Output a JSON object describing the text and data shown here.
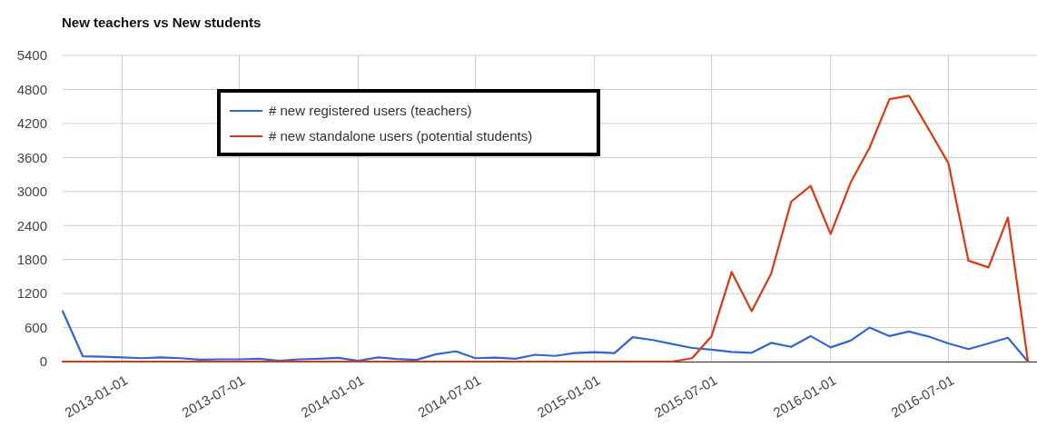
{
  "chart_data": {
    "type": "line",
    "title": "New teachers vs New students",
    "x": [
      "2012-10",
      "2012-11",
      "2012-12",
      "2013-01",
      "2013-02",
      "2013-03",
      "2013-04",
      "2013-05",
      "2013-06",
      "2013-07",
      "2013-08",
      "2013-09",
      "2013-10",
      "2013-11",
      "2013-12",
      "2014-01",
      "2014-02",
      "2014-03",
      "2014-04",
      "2014-05",
      "2014-06",
      "2014-07",
      "2014-08",
      "2014-09",
      "2014-10",
      "2014-11",
      "2014-12",
      "2015-01",
      "2015-02",
      "2015-03",
      "2015-04",
      "2015-05",
      "2015-06",
      "2015-07",
      "2015-08",
      "2015-09",
      "2015-10",
      "2015-11",
      "2015-12",
      "2016-01",
      "2016-02",
      "2016-03",
      "2016-04",
      "2016-05",
      "2016-06",
      "2016-07",
      "2016-08",
      "2016-09",
      "2016-10",
      "2016-11"
    ],
    "series": [
      {
        "name": "# new registered users (teachers)",
        "color": "#3366cc",
        "values": [
          890,
          95,
          85,
          75,
          60,
          75,
          60,
          35,
          40,
          40,
          50,
          15,
          40,
          50,
          65,
          15,
          75,
          45,
          30,
          130,
          180,
          60,
          70,
          50,
          120,
          100,
          150,
          165,
          150,
          430,
          380,
          310,
          240,
          210,
          170,
          155,
          330,
          260,
          450,
          250,
          370,
          600,
          450,
          530,
          440,
          320,
          220,
          320,
          420,
          0
        ]
      },
      {
        "name": "# new standalone users (potential students)",
        "color": "#dc3912",
        "values": [
          0,
          0,
          0,
          0,
          0,
          0,
          0,
          0,
          0,
          0,
          0,
          0,
          0,
          0,
          0,
          0,
          0,
          0,
          0,
          0,
          0,
          0,
          0,
          0,
          0,
          0,
          0,
          0,
          0,
          0,
          0,
          0,
          60,
          450,
          1580,
          890,
          1550,
          2820,
          3100,
          2250,
          3160,
          3770,
          4630,
          4690,
          4090,
          3500,
          1780,
          1660,
          2540,
          0
        ]
      }
    ],
    "xlim": [
      "2012-10-01",
      "2016-11-15"
    ],
    "xticks": [
      {
        "value": "2013-01-01",
        "label": "2013-01-01"
      },
      {
        "value": "2013-07-01",
        "label": "2013-07-01"
      },
      {
        "value": "2014-01-01",
        "label": "2014-01-01"
      },
      {
        "value": "2014-07-01",
        "label": "2014-07-01"
      },
      {
        "value": "2015-01-01",
        "label": "2015-01-01"
      },
      {
        "value": "2015-07-01",
        "label": "2015-07-01"
      },
      {
        "value": "2016-01-01",
        "label": "2016-01-01"
      },
      {
        "value": "2016-07-01",
        "label": "2016-07-01"
      }
    ],
    "ylim": [
      0,
      5400
    ],
    "yticks": [
      0,
      600,
      1200,
      1800,
      2400,
      3000,
      3600,
      4200,
      4800,
      5400
    ],
    "grid": true,
    "legend": "top left",
    "line_style": "solid",
    "marker": "none"
  }
}
